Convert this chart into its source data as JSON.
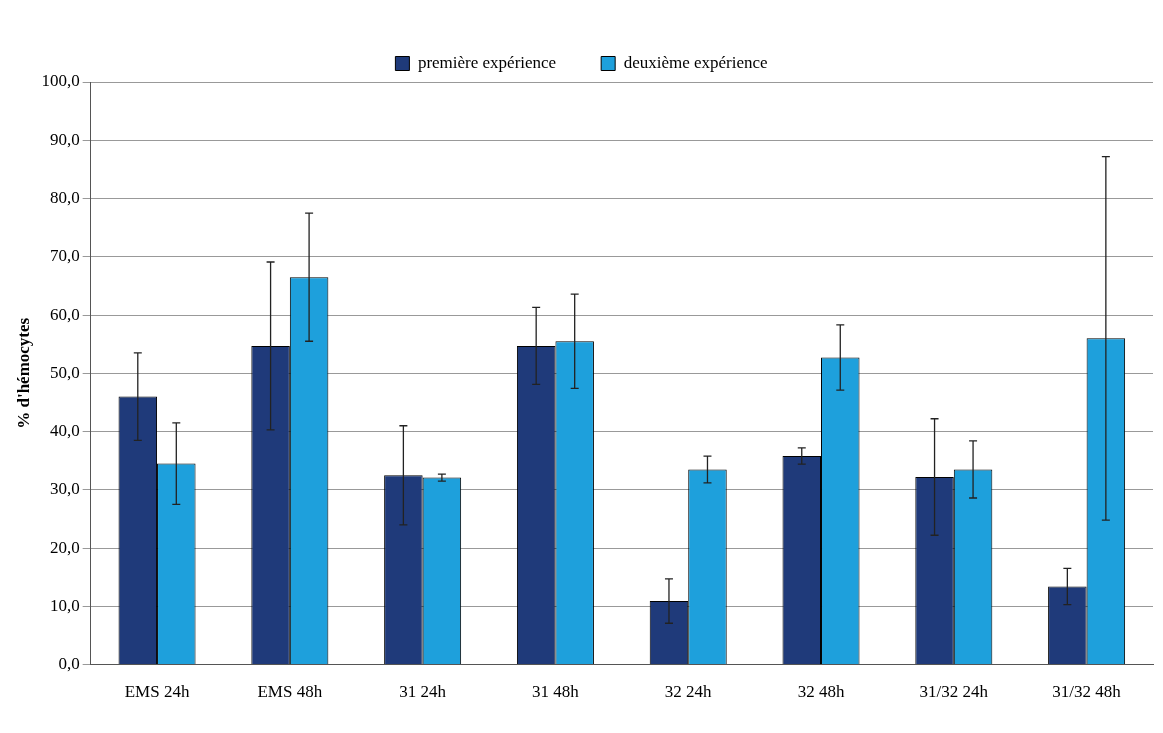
{
  "chart_data": {
    "type": "bar",
    "ylabel": "% d'hémocytes",
    "categories": [
      "EMS 24h",
      "EMS 48h",
      "31 24h",
      "31 48h",
      "32 24h",
      "32 48h",
      "31/32 24h",
      "31/32 48h"
    ],
    "series": [
      {
        "name": "première expérience",
        "color": "#1f3a7a",
        "values": [
          46.0,
          54.7,
          32.5,
          54.7,
          10.9,
          35.8,
          32.2,
          13.4
        ],
        "errors": [
          7.5,
          14.4,
          8.5,
          6.6,
          3.8,
          1.4,
          10.0,
          3.1
        ]
      },
      {
        "name": "deuxième expérience",
        "color": "#1ea0dc",
        "values": [
          34.5,
          66.5,
          32.1,
          55.5,
          33.5,
          52.7,
          33.5,
          56.0
        ],
        "errors": [
          7.0,
          11.0,
          0.6,
          8.1,
          2.3,
          5.6,
          4.9,
          31.2
        ]
      }
    ],
    "ylim": [
      0,
      100
    ],
    "yticks": [
      {
        "value": 0,
        "label": "0,0"
      },
      {
        "value": 10,
        "label": "10,0"
      },
      {
        "value": 20,
        "label": "20,0"
      },
      {
        "value": 30,
        "label": "30,0"
      },
      {
        "value": 40,
        "label": "40,0"
      },
      {
        "value": 50,
        "label": "50,0"
      },
      {
        "value": 60,
        "label": "60,0"
      },
      {
        "value": 70,
        "label": "70,0"
      },
      {
        "value": 80,
        "label": "80,0"
      },
      {
        "value": 90,
        "label": "90,0"
      },
      {
        "value": 100,
        "label": "100,0"
      }
    ],
    "grid": "y",
    "legend": "top"
  }
}
